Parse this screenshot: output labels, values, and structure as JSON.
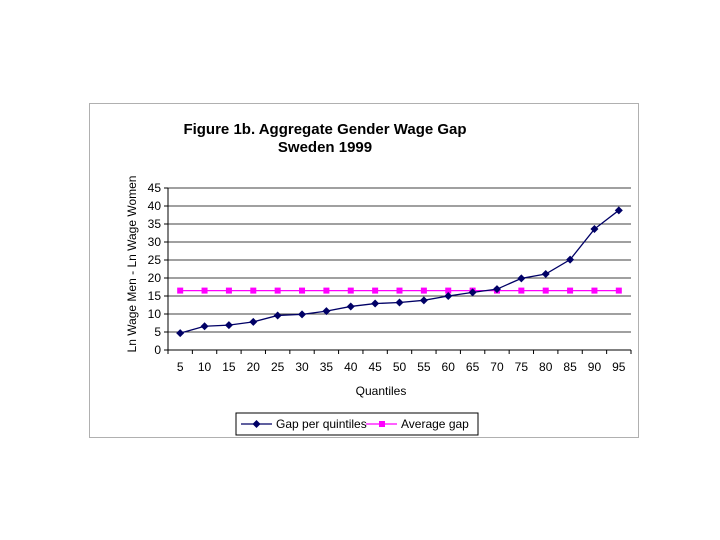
{
  "chart_data": {
    "type": "line",
    "title": "Figure 1b. Aggregate Gender Wage Gap",
    "subtitle": "Sweden 1999",
    "xlabel": "Quantiles",
    "ylabel": "Ln Wage Men - Ln Wage Women",
    "ylim": [
      0,
      45
    ],
    "yticks": [
      "0",
      "5",
      "10",
      "15",
      "20",
      "25",
      "30",
      "35",
      "40",
      "45"
    ],
    "categories": [
      "5",
      "10",
      "15",
      "20",
      "25",
      "30",
      "35",
      "40",
      "45",
      "50",
      "55",
      "60",
      "65",
      "70",
      "75",
      "80",
      "85",
      "90",
      "95"
    ],
    "grid": "horizontal",
    "legend_position": "bottom",
    "series": [
      {
        "name": "Gap per quintiles",
        "color": "#000066",
        "marker": "diamond",
        "values": [
          4.7,
          6.6,
          6.9,
          7.8,
          9.6,
          9.9,
          10.8,
          12.1,
          12.9,
          13.2,
          13.8,
          15.0,
          16.0,
          16.9,
          19.9,
          21.1,
          25.1,
          33.6,
          38.8
        ]
      },
      {
        "name": "Average gap",
        "color": "#ff00ff",
        "marker": "square",
        "values": [
          16.5,
          16.5,
          16.5,
          16.5,
          16.5,
          16.5,
          16.5,
          16.5,
          16.5,
          16.5,
          16.5,
          16.5,
          16.5,
          16.5,
          16.5,
          16.5,
          16.5,
          16.5,
          16.5
        ]
      }
    ]
  }
}
